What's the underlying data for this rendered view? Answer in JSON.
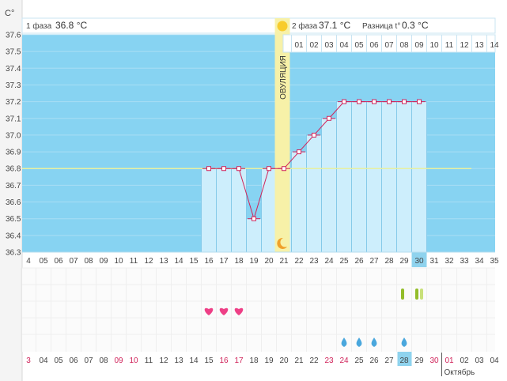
{
  "unit_label": "C°",
  "phase1": {
    "label": "1 фаза",
    "temp": "36.8 °C"
  },
  "phase2": {
    "label": "2 фаза",
    "temp": "37.1 °C"
  },
  "difference": {
    "label": "Разница t°",
    "value": "0.3 °C"
  },
  "ovulation_label": "ОВУЛЯЦИЯ",
  "month_label": "Октябрь",
  "colors": {
    "sky": "#87d3f2",
    "bar_fill": "#cdeefc",
    "bar_stroke": "#7cc5e6",
    "line": "#d0245b",
    "coverline": "#e8f0a0",
    "ovulation": "#f7f1a8",
    "highlight": "#8fd3ee",
    "heart": "#ee3f86",
    "drop": "#4aa7dd",
    "marker_dark": "#93bd2a",
    "marker_light": "#c9e07a",
    "red_date": "#d0245b"
  },
  "chart_data": {
    "type": "line",
    "ylabel": "C°",
    "ylim": [
      36.3,
      37.6
    ],
    "y_ticks": [
      "36.3",
      "36.4",
      "36.5",
      "36.6",
      "36.7",
      "36.8",
      "36.9",
      "37.0",
      "37.1",
      "37.2",
      "37.3",
      "37.4",
      "37.5",
      "37.6"
    ],
    "coverline": 36.8,
    "ovulation_cycle_day": 21,
    "moon_cycle_day": 21,
    "phase2_day_numbers": [
      "01",
      "02",
      "03",
      "04",
      "05",
      "06",
      "07",
      "08",
      "09",
      "10",
      "11",
      "12",
      "13",
      "14"
    ],
    "cycle_days": [
      "4",
      "05",
      "06",
      "07",
      "08",
      "09",
      "10",
      "11",
      "12",
      "13",
      "14",
      "15",
      "16",
      "17",
      "18",
      "19",
      "20",
      "21",
      "22",
      "23",
      "24",
      "25",
      "26",
      "27",
      "28",
      "29",
      "30",
      "31",
      "32",
      "33",
      "34",
      "35"
    ],
    "x": [
      16,
      17,
      18,
      19,
      20,
      21,
      22,
      23,
      24,
      25,
      26,
      27,
      28,
      29,
      30
    ],
    "y": [
      36.8,
      36.8,
      36.8,
      36.5,
      36.8,
      36.8,
      36.9,
      37.0,
      37.1,
      37.2,
      37.2,
      37.2,
      37.2,
      37.2,
      37.2
    ],
    "current_cycle_day": 30,
    "heart_days": [
      16,
      17,
      18
    ],
    "drop_days": [
      25,
      26,
      27,
      29
    ],
    "marker_days": [
      {
        "day": 29,
        "type": "dark"
      },
      {
        "day": 30,
        "type": "dark"
      },
      {
        "day": 30,
        "type": "light"
      }
    ],
    "calendar_dates": [
      "3",
      "04",
      "05",
      "06",
      "07",
      "08",
      "09",
      "10",
      "11",
      "12",
      "13",
      "14",
      "15",
      "16",
      "17",
      "18",
      "19",
      "20",
      "21",
      "22",
      "23",
      "24",
      "25",
      "26",
      "27",
      "28",
      "29",
      "30",
      "01",
      "02",
      "03",
      "04"
    ],
    "red_dates": [
      "3",
      "09",
      "10",
      "16",
      "17",
      "23",
      "24",
      "30",
      "01"
    ],
    "today_date": "29"
  }
}
